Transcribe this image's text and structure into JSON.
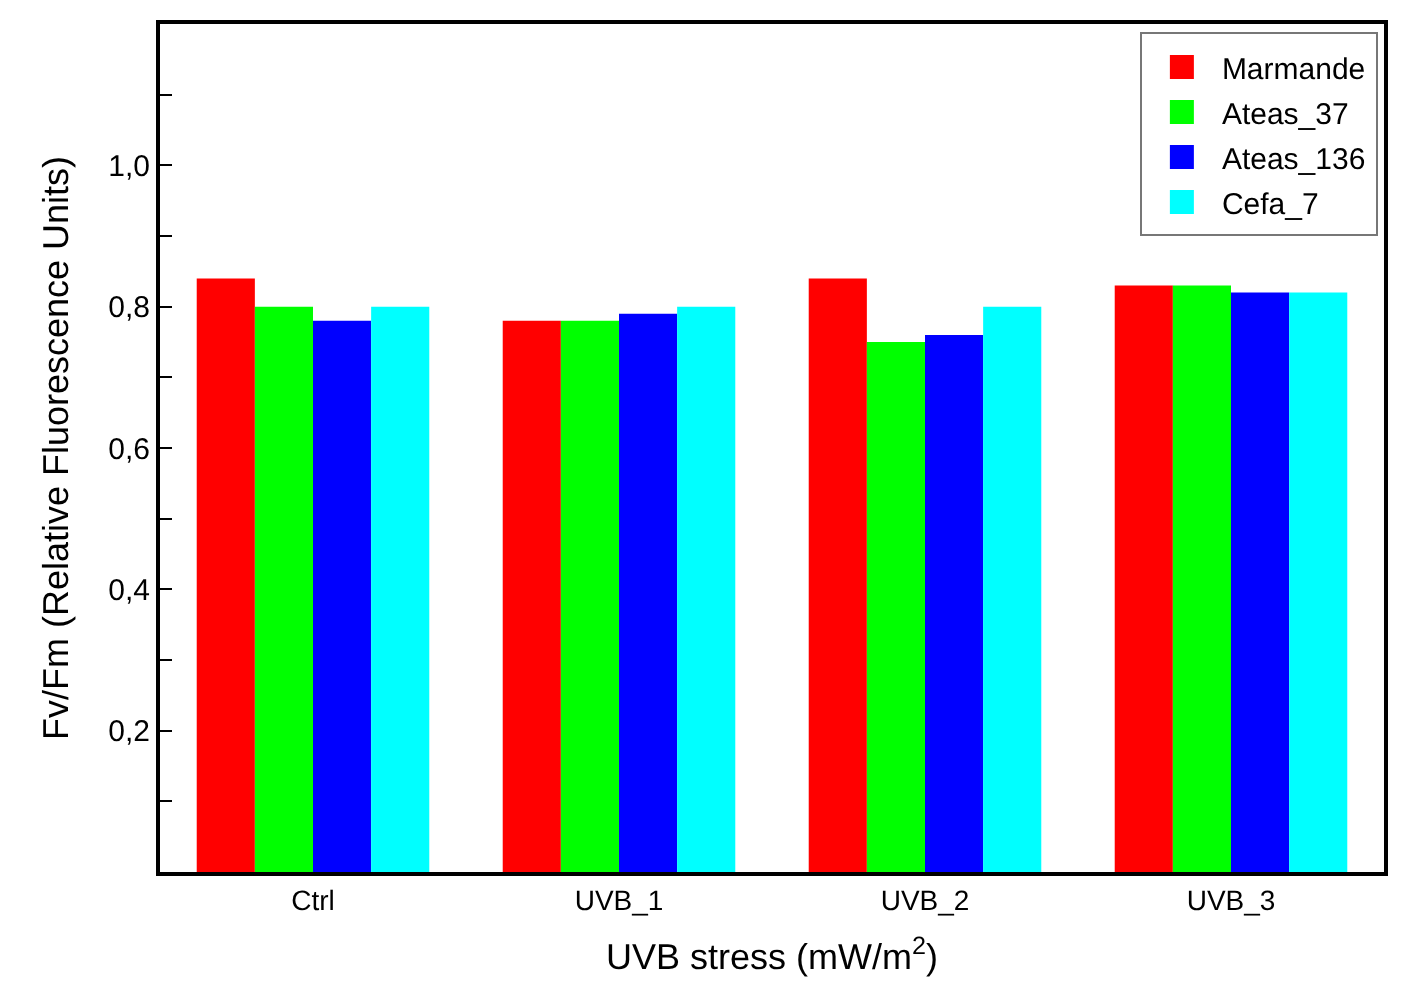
{
  "chart_data": {
    "type": "bar",
    "xlabel": "UVB stress (mW/m$^{2}$)",
    "ylabel": "Fv/Fm (Relative Fluorescence Units)",
    "categories": [
      "Ctrl",
      "UVB_1",
      "UVB_2",
      "UVB_3"
    ],
    "series": [
      {
        "name": "Marmande",
        "color": "#ff0000",
        "values": [
          0.84,
          0.78,
          0.84,
          0.83
        ]
      },
      {
        "name": "Ateas_37",
        "color": "#00ff00",
        "values": [
          0.8,
          0.78,
          0.75,
          0.83
        ]
      },
      {
        "name": "Ateas_136",
        "color": "#0000ff",
        "values": [
          0.78,
          0.79,
          0.76,
          0.82
        ]
      },
      {
        "name": "Cefa_7",
        "color": "#00ffff",
        "values": [
          0.8,
          0.8,
          0.8,
          0.82
        ]
      }
    ],
    "ylim": [
      0,
      1.2
    ],
    "yticks": [
      {
        "value": 0.1,
        "label": null
      },
      {
        "value": 0.2,
        "label": "0,2"
      },
      {
        "value": 0.3,
        "label": null
      },
      {
        "value": 0.4,
        "label": "0,4"
      },
      {
        "value": 0.5,
        "label": null
      },
      {
        "value": 0.6,
        "label": "0,6"
      },
      {
        "value": 0.7,
        "label": null
      },
      {
        "value": 0.8,
        "label": "0,8"
      },
      {
        "value": 0.9,
        "label": null
      },
      {
        "value": 1.0,
        "label": "1,0"
      },
      {
        "value": 1.1,
        "label": null
      }
    ],
    "legend": "top right"
  }
}
